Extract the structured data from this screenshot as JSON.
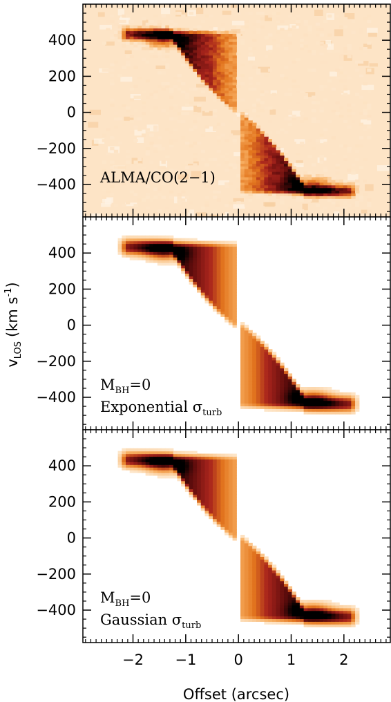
{
  "chart_data": [
    {
      "type": "heatmap",
      "annotation_lines": [
        "ALMA/CO(2−1)"
      ],
      "x_ticks": [
        "−2",
        "−1",
        "0",
        "1",
        "2"
      ],
      "x_tick_values": [
        -2,
        -1,
        0,
        1,
        2
      ],
      "y_ticks": [
        "400",
        "200",
        "0",
        "−200",
        "−400"
      ],
      "y_tick_values": [
        400,
        200,
        0,
        -200,
        -400
      ],
      "xlim": [
        -2.95,
        2.88
      ],
      "ylim": [
        -580,
        600
      ],
      "peaks": [
        {
          "x": -1.4,
          "y": 390
        },
        {
          "x": 1.4,
          "y": -410
        }
      ],
      "noise": true
    },
    {
      "type": "heatmap",
      "annotation_lines": [
        "M",
        "Exponential σ"
      ],
      "annotation_subscripts": [
        "BH",
        "turb"
      ],
      "annotation_suffix": [
        "=0",
        ""
      ],
      "x_ticks": [
        "−2",
        "−1",
        "0",
        "1",
        "2"
      ],
      "x_tick_values": [
        -2,
        -1,
        0,
        1,
        2
      ],
      "y_ticks": [
        "400",
        "200",
        "0",
        "−200",
        "−400"
      ],
      "y_tick_values": [
        400,
        200,
        0,
        -200,
        -400
      ],
      "xlim": [
        -2.95,
        2.88
      ],
      "ylim": [
        -580,
        600
      ],
      "peaks": [
        {
          "x": -1.4,
          "y": 390
        },
        {
          "x": 1.4,
          "y": -410
        }
      ],
      "noise": false
    },
    {
      "type": "heatmap",
      "annotation_lines": [
        "M",
        "Gaussian σ"
      ],
      "annotation_subscripts": [
        "BH",
        "turb"
      ],
      "annotation_suffix": [
        "=0",
        ""
      ],
      "x_ticks": [
        "−2",
        "−1",
        "0",
        "1",
        "2"
      ],
      "x_tick_values": [
        -2,
        -1,
        0,
        1,
        2
      ],
      "y_ticks": [
        "400",
        "200",
        "0",
        "−200",
        "−400"
      ],
      "y_tick_values": [
        400,
        200,
        0,
        -200,
        -400
      ],
      "xlim": [
        -2.95,
        2.88
      ],
      "ylim": [
        -580,
        600
      ],
      "peaks": [
        {
          "x": -1.4,
          "y": 390
        },
        {
          "x": 1.4,
          "y": -410
        }
      ],
      "noise": false
    }
  ],
  "axes": {
    "xlabel": "Offset (arcsec)",
    "ylabel_main": "v",
    "ylabel_sub": "LOS",
    "ylabel_units": "(km s",
    "ylabel_exp": "-1",
    "ylabel_close": ")"
  },
  "colormap": [
    "#ffffff",
    "#fde5c8",
    "#f9b266",
    "#e3761e",
    "#a8241c",
    "#5e0c0c",
    "#000000"
  ]
}
